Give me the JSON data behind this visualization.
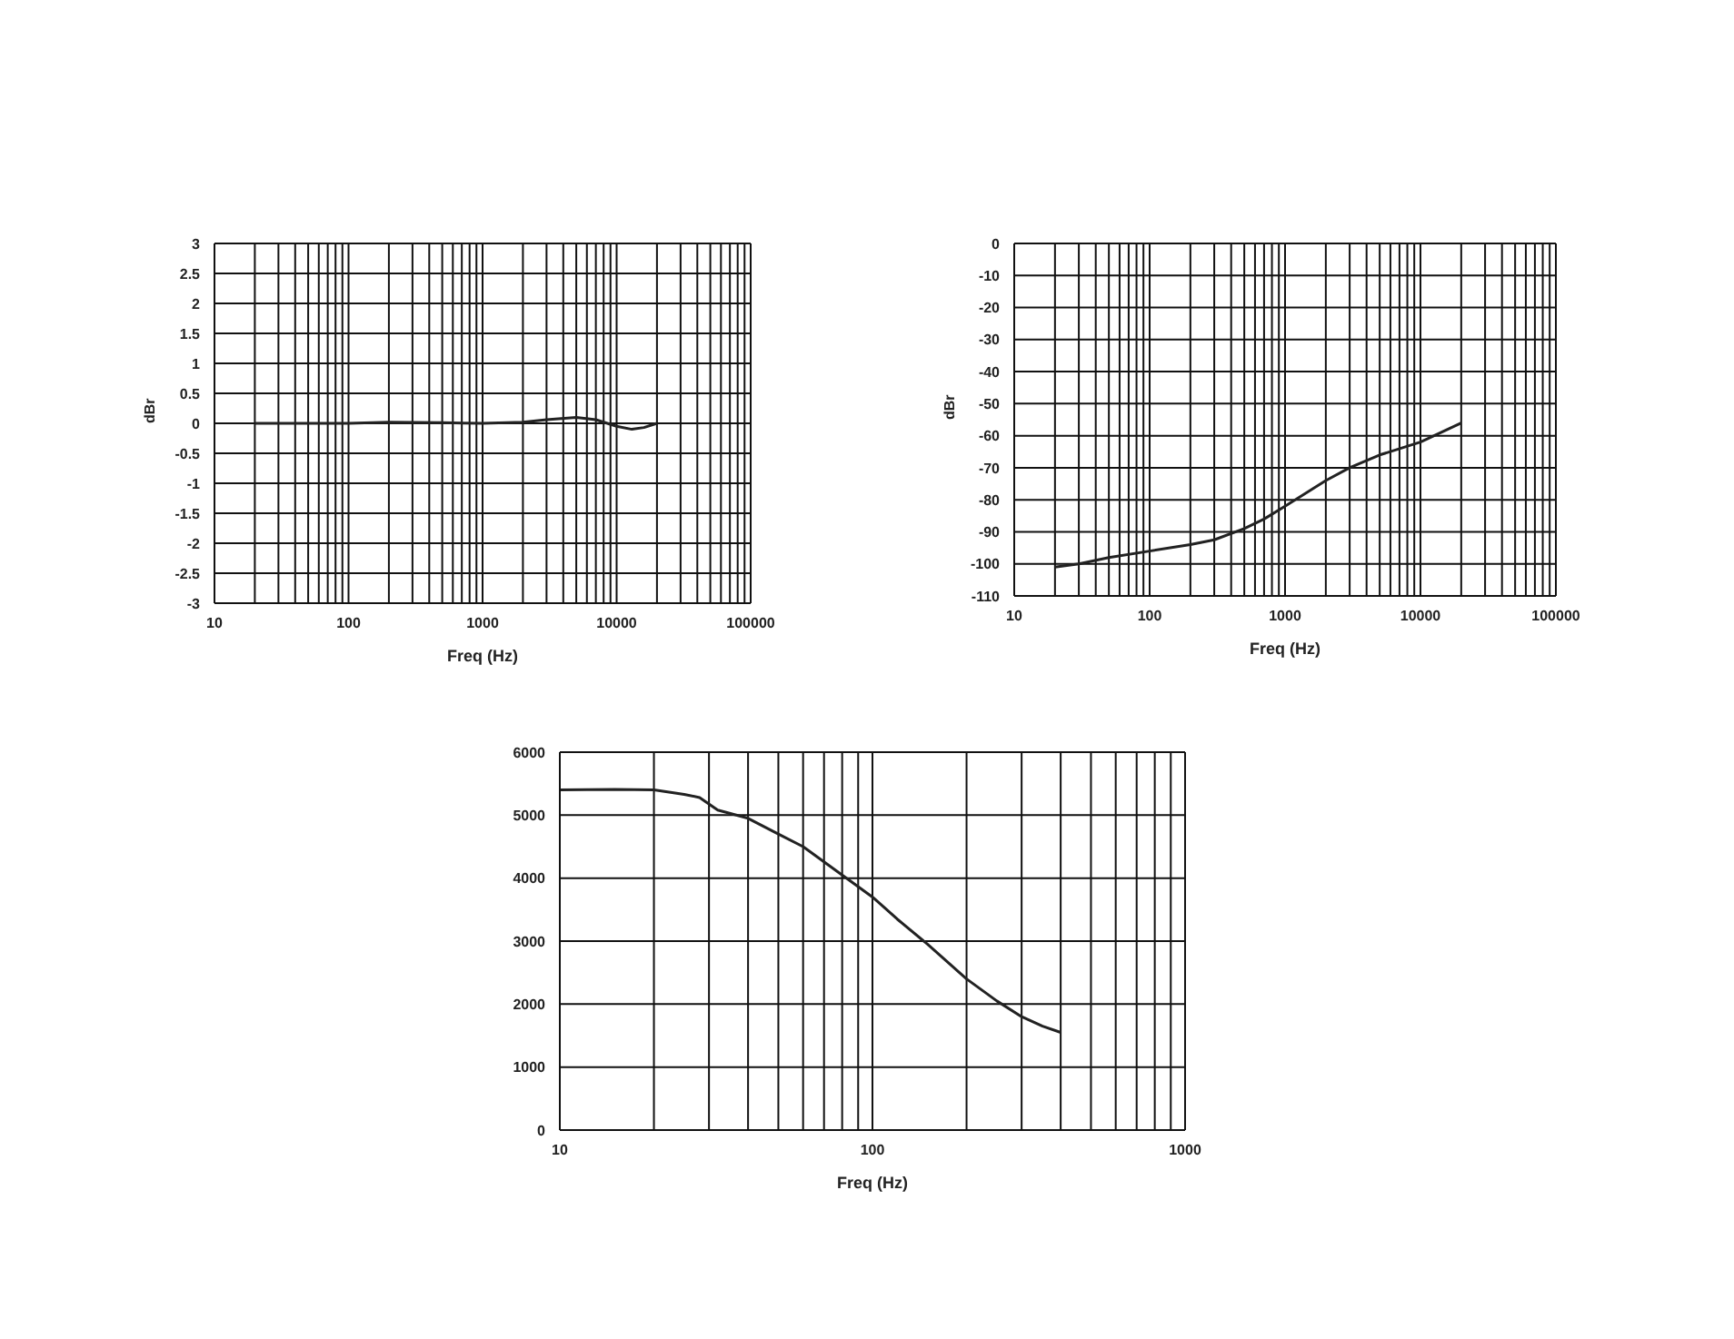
{
  "chart_data": [
    {
      "type": "line",
      "xlabel": "Freq (Hz)",
      "ylabel": "dBr",
      "log": "x",
      "grid": true,
      "xlim": [
        10,
        100000
      ],
      "ylim": [
        -3,
        3
      ],
      "xticks": [
        10,
        {
          "value": 20,
          "label": null
        },
        {
          "value": 30,
          "label": null
        },
        {
          "value": 40,
          "label": null
        },
        {
          "value": 50,
          "label": null
        },
        {
          "value": 60,
          "label": null
        },
        {
          "value": 70,
          "label": null
        },
        {
          "value": 80,
          "label": null
        },
        {
          "value": 90,
          "label": null
        },
        100,
        {
          "value": 200,
          "label": null
        },
        {
          "value": 300,
          "label": null
        },
        {
          "value": 400,
          "label": null
        },
        {
          "value": 500,
          "label": null
        },
        {
          "value": 600,
          "label": null
        },
        {
          "value": 700,
          "label": null
        },
        {
          "value": 800,
          "label": null
        },
        {
          "value": 900,
          "label": null
        },
        1000,
        {
          "value": 2000,
          "label": null
        },
        {
          "value": 3000,
          "label": null
        },
        {
          "value": 4000,
          "label": null
        },
        {
          "value": 5000,
          "label": null
        },
        {
          "value": 6000,
          "label": null
        },
        {
          "value": 7000,
          "label": null
        },
        {
          "value": 8000,
          "label": null
        },
        {
          "value": 9000,
          "label": null
        },
        10000,
        {
          "value": 20000,
          "label": null
        },
        {
          "value": 30000,
          "label": null
        },
        {
          "value": 40000,
          "label": null
        },
        {
          "value": 50000,
          "label": null
        },
        {
          "value": 60000,
          "label": null
        },
        {
          "value": 70000,
          "label": null
        },
        {
          "value": 80000,
          "label": null
        },
        {
          "value": 90000,
          "label": null
        },
        100000
      ],
      "yticks": [
        -3,
        -2.5,
        -2,
        -1.5,
        -1,
        -0.5,
        0,
        0.5,
        1,
        1.5,
        2,
        2.5,
        3
      ],
      "series": [
        {
          "color": "#222222",
          "x": [
            20,
            50,
            100,
            200,
            500,
            1000,
            2000,
            3000,
            5000,
            7000,
            10000,
            13000,
            16000,
            20000
          ],
          "values": [
            0,
            0,
            0,
            0.02,
            0.01,
            0,
            0.02,
            0.06,
            0.1,
            0.06,
            -0.05,
            -0.1,
            -0.07,
            0
          ]
        }
      ]
    },
    {
      "type": "line",
      "xlabel": "Freq (Hz)",
      "ylabel": "dBr",
      "log": "x",
      "grid": true,
      "xlim": [
        10,
        100000
      ],
      "ylim": [
        -110,
        0
      ],
      "xticks": [
        10,
        {
          "value": 20,
          "label": null
        },
        {
          "value": 30,
          "label": null
        },
        {
          "value": 40,
          "label": null
        },
        {
          "value": 50,
          "label": null
        },
        {
          "value": 60,
          "label": null
        },
        {
          "value": 70,
          "label": null
        },
        {
          "value": 80,
          "label": null
        },
        {
          "value": 90,
          "label": null
        },
        100,
        {
          "value": 200,
          "label": null
        },
        {
          "value": 300,
          "label": null
        },
        {
          "value": 400,
          "label": null
        },
        {
          "value": 500,
          "label": null
        },
        {
          "value": 600,
          "label": null
        },
        {
          "value": 700,
          "label": null
        },
        {
          "value": 800,
          "label": null
        },
        {
          "value": 900,
          "label": null
        },
        1000,
        {
          "value": 2000,
          "label": null
        },
        {
          "value": 3000,
          "label": null
        },
        {
          "value": 4000,
          "label": null
        },
        {
          "value": 5000,
          "label": null
        },
        {
          "value": 6000,
          "label": null
        },
        {
          "value": 7000,
          "label": null
        },
        {
          "value": 8000,
          "label": null
        },
        {
          "value": 9000,
          "label": null
        },
        10000,
        {
          "value": 20000,
          "label": null
        },
        {
          "value": 30000,
          "label": null
        },
        {
          "value": 40000,
          "label": null
        },
        {
          "value": 50000,
          "label": null
        },
        {
          "value": 60000,
          "label": null
        },
        {
          "value": 70000,
          "label": null
        },
        {
          "value": 80000,
          "label": null
        },
        {
          "value": 90000,
          "label": null
        },
        100000
      ],
      "yticks": [
        -110,
        -100,
        -90,
        -80,
        -70,
        -60,
        -50,
        -40,
        -30,
        -20,
        -10,
        0
      ],
      "series": [
        {
          "color": "#222222",
          "x": [
            20,
            30,
            50,
            100,
            200,
            300,
            500,
            700,
            1000,
            2000,
            3000,
            5000,
            10000,
            20000
          ],
          "values": [
            -101,
            -100,
            -98,
            -96,
            -94,
            -92.5,
            -89,
            -86,
            -82,
            -74,
            -70,
            -66,
            -62,
            -56
          ]
        }
      ]
    },
    {
      "type": "line",
      "xlabel": "Freq (Hz)",
      "log": "x",
      "grid": true,
      "xlim": [
        10,
        1000
      ],
      "ylim": [
        0,
        6000
      ],
      "xticks": [
        10,
        {
          "value": 20,
          "label": null
        },
        {
          "value": 30,
          "label": null
        },
        {
          "value": 40,
          "label": null
        },
        {
          "value": 50,
          "label": null
        },
        {
          "value": 60,
          "label": null
        },
        {
          "value": 70,
          "label": null
        },
        {
          "value": 80,
          "label": null
        },
        {
          "value": 90,
          "label": null
        },
        100,
        {
          "value": 200,
          "label": null
        },
        {
          "value": 300,
          "label": null
        },
        {
          "value": 400,
          "label": null
        },
        {
          "value": 500,
          "label": null
        },
        {
          "value": 600,
          "label": null
        },
        {
          "value": 700,
          "label": null
        },
        {
          "value": 800,
          "label": null
        },
        {
          "value": 900,
          "label": null
        },
        1000
      ],
      "yticks": [
        0,
        1000,
        2000,
        3000,
        4000,
        5000,
        6000
      ],
      "series": [
        {
          "color": "#222222",
          "x": [
            10,
            15,
            20,
            25,
            28,
            32,
            40,
            50,
            60,
            80,
            100,
            120,
            150,
            200,
            250,
            300,
            350,
            400
          ],
          "values": [
            5400,
            5410,
            5400,
            5330,
            5280,
            5080,
            4950,
            4700,
            4500,
            4050,
            3700,
            3350,
            2950,
            2400,
            2050,
            1800,
            1650,
            1550
          ]
        }
      ]
    }
  ]
}
